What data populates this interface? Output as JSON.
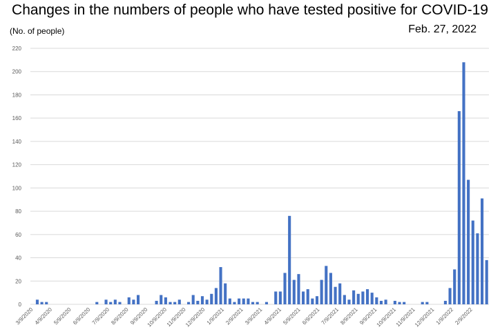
{
  "header": {
    "title": "Changes in the numbers of people who have tested positive for COVID-19",
    "y_unit": "(No. of people)",
    "date": "Feb. 27, 2022"
  },
  "colors": {
    "bar": "#4472c4",
    "grid": "#d9d9d9"
  },
  "chart_data": {
    "type": "bar",
    "x_ticks": [
      "3/9/2020",
      "4/9/2020",
      "5/9/2020",
      "6/9/2020",
      "7/9/2020",
      "8/9/2020",
      "9/9/2020",
      "10/9/2020",
      "11/9/2020",
      "12/9/2020",
      "1/9/2021",
      "2/9/2021",
      "3/9/2021",
      "4/9/2021",
      "5/9/2021",
      "6/9/2021",
      "7/9/2021",
      "8/9/2021",
      "9/9/2021",
      "10/9/2021",
      "11/9/2021",
      "12/9/2021",
      "1/9/2022",
      "2/9/2022"
    ],
    "values": [
      0,
      4,
      2,
      2,
      0,
      0,
      0,
      0,
      0,
      0,
      0,
      0,
      0,
      0,
      2,
      0,
      4,
      2,
      4,
      2,
      0,
      6,
      4,
      8,
      0,
      0,
      0,
      3,
      8,
      6,
      2,
      2,
      4,
      0,
      2,
      8,
      3,
      7,
      4,
      9,
      14,
      32,
      18,
      5,
      2,
      5,
      5,
      5,
      2,
      2,
      0,
      2,
      0,
      11,
      11,
      27,
      76,
      21,
      26,
      11,
      13,
      5,
      7,
      21,
      33,
      27,
      15,
      18,
      8,
      4,
      12,
      9,
      11,
      13,
      10,
      6,
      3,
      4,
      0,
      3,
      2,
      2,
      0,
      0,
      0,
      2,
      2,
      0,
      0,
      0,
      3,
      14,
      30,
      166,
      208,
      107,
      72,
      61,
      91,
      38
    ],
    "ylim": [
      0,
      220
    ],
    "yticks": [
      0,
      20,
      40,
      60,
      80,
      100,
      120,
      140,
      160,
      180,
      200,
      220
    ],
    "grid": true,
    "legend": "none"
  }
}
